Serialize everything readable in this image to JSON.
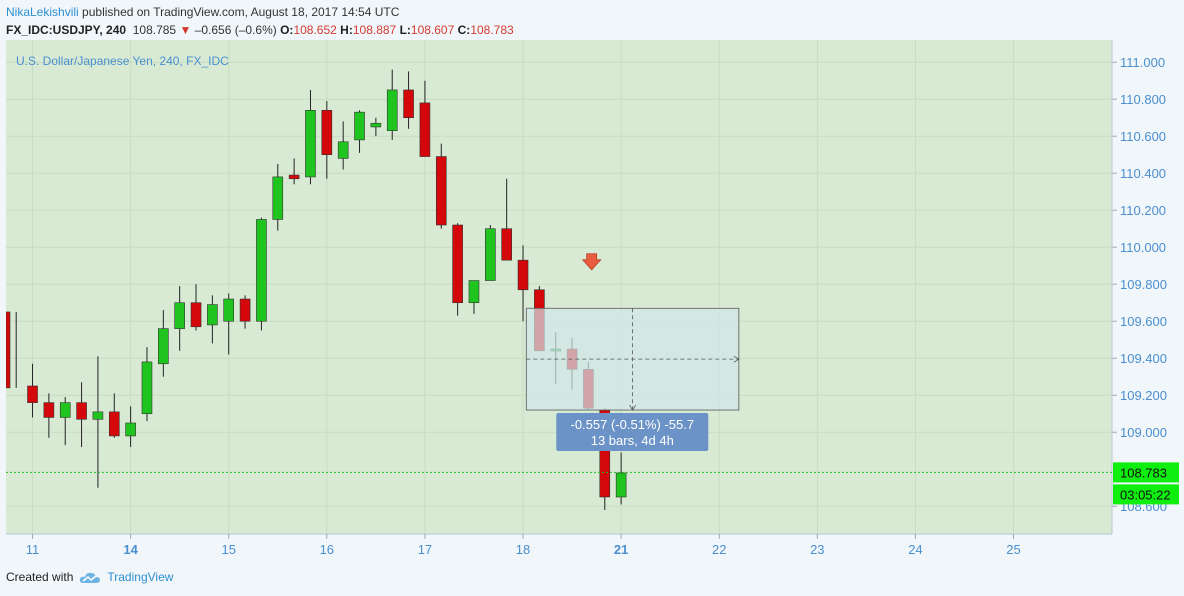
{
  "header": {
    "author": "NikaLekishvili",
    "published": "published on TradingView.com, August 18, 2017 14:54 UTC",
    "symbol": "FX_IDC:USDJPY, 240",
    "last": "108.785",
    "change": "–0.656 (–0.6%)",
    "o_label": "O:",
    "o": "108.652",
    "h_label": "H:",
    "h": "108.887",
    "l_label": "L:",
    "l": "108.607",
    "c_label": "C:",
    "c": "108.783"
  },
  "chart_data": {
    "type": "candlestick",
    "title": "U.S. Dollar/Japanese Yen, 240, FX_IDC",
    "ylim": [
      108.45,
      111.12
    ],
    "y_ticks": [
      "111.000",
      "110.800",
      "110.600",
      "110.400",
      "110.200",
      "110.000",
      "109.800",
      "109.600",
      "109.400",
      "109.200",
      "109.000",
      "108.600"
    ],
    "x_ticks": [
      {
        "label": "11",
        "x": 1.5,
        "bold": false
      },
      {
        "label": "14",
        "x": 7.5,
        "bold": true
      },
      {
        "label": "15",
        "x": 13.5,
        "bold": false
      },
      {
        "label": "16",
        "x": 19.5,
        "bold": false
      },
      {
        "label": "17",
        "x": 25.5,
        "bold": false
      },
      {
        "label": "18",
        "x": 31.5,
        "bold": false
      },
      {
        "label": "21",
        "x": 37.5,
        "bold": true
      },
      {
        "label": "22",
        "x": 43.5,
        "bold": false
      },
      {
        "label": "23",
        "x": 49.5,
        "bold": false
      },
      {
        "label": "24",
        "x": 55.5,
        "bold": false
      },
      {
        "label": "25",
        "x": 61.5,
        "bold": false
      }
    ],
    "candles": [
      {
        "o": 109.65,
        "h": 109.65,
        "l": 109.24,
        "c": 109.24
      },
      {
        "o": 109.25,
        "h": 109.37,
        "l": 109.08,
        "c": 109.16
      },
      {
        "o": 109.16,
        "h": 109.21,
        "l": 108.97,
        "c": 109.08
      },
      {
        "o": 109.08,
        "h": 109.19,
        "l": 108.93,
        "c": 109.16
      },
      {
        "o": 109.16,
        "h": 109.27,
        "l": 108.92,
        "c": 109.07
      },
      {
        "o": 109.07,
        "h": 109.41,
        "l": 108.7,
        "c": 109.11
      },
      {
        "o": 109.11,
        "h": 109.21,
        "l": 108.97,
        "c": 108.98
      },
      {
        "o": 108.98,
        "h": 109.14,
        "l": 108.92,
        "c": 109.05
      },
      {
        "o": 109.1,
        "h": 109.46,
        "l": 109.06,
        "c": 109.38
      },
      {
        "o": 109.37,
        "h": 109.66,
        "l": 109.3,
        "c": 109.56
      },
      {
        "o": 109.56,
        "h": 109.79,
        "l": 109.44,
        "c": 109.7
      },
      {
        "o": 109.7,
        "h": 109.8,
        "l": 109.55,
        "c": 109.57
      },
      {
        "o": 109.58,
        "h": 109.74,
        "l": 109.48,
        "c": 109.69
      },
      {
        "o": 109.6,
        "h": 109.75,
        "l": 109.42,
        "c": 109.72
      },
      {
        "o": 109.72,
        "h": 109.74,
        "l": 109.56,
        "c": 109.6
      },
      {
        "o": 109.6,
        "h": 110.16,
        "l": 109.55,
        "c": 110.15
      },
      {
        "o": 110.15,
        "h": 110.45,
        "l": 110.09,
        "c": 110.38
      },
      {
        "o": 110.39,
        "h": 110.48,
        "l": 110.34,
        "c": 110.37
      },
      {
        "o": 110.38,
        "h": 110.85,
        "l": 110.34,
        "c": 110.74
      },
      {
        "o": 110.74,
        "h": 110.79,
        "l": 110.37,
        "c": 110.5
      },
      {
        "o": 110.48,
        "h": 110.68,
        "l": 110.42,
        "c": 110.57
      },
      {
        "o": 110.58,
        "h": 110.74,
        "l": 110.51,
        "c": 110.73
      },
      {
        "o": 110.65,
        "h": 110.7,
        "l": 110.6,
        "c": 110.67
      },
      {
        "o": 110.63,
        "h": 110.96,
        "l": 110.58,
        "c": 110.85
      },
      {
        "o": 110.85,
        "h": 110.95,
        "l": 110.64,
        "c": 110.7
      },
      {
        "o": 110.78,
        "h": 110.9,
        "l": 110.49,
        "c": 110.49
      },
      {
        "o": 110.49,
        "h": 110.56,
        "l": 110.1,
        "c": 110.12
      },
      {
        "o": 110.12,
        "h": 110.13,
        "l": 109.63,
        "c": 109.7
      },
      {
        "o": 109.7,
        "h": 109.81,
        "l": 109.64,
        "c": 109.82
      },
      {
        "o": 109.82,
        "h": 110.12,
        "l": 109.82,
        "c": 110.1
      },
      {
        "o": 110.1,
        "h": 110.37,
        "l": 109.93,
        "c": 109.93
      },
      {
        "o": 109.93,
        "h": 110.01,
        "l": 109.6,
        "c": 109.77
      },
      {
        "o": 109.77,
        "h": 109.79,
        "l": 109.44,
        "c": 109.44
      },
      {
        "o": 109.44,
        "h": 109.54,
        "l": 109.26,
        "c": 109.45
      },
      {
        "o": 109.45,
        "h": 109.51,
        "l": 109.23,
        "c": 109.34
      },
      {
        "o": 109.34,
        "h": 109.38,
        "l": 109.12,
        "c": 109.13
      },
      {
        "o": 109.12,
        "h": 109.13,
        "l": 108.58,
        "c": 108.65
      },
      {
        "o": 108.65,
        "h": 108.89,
        "l": 108.61,
        "c": 108.78
      }
    ],
    "last_price": 108.783,
    "last_price_label": "108.783",
    "countdown_label": "03:05:22",
    "measure": {
      "x0": 31.2,
      "x1": 44.2,
      "y0": 109.12,
      "y1": 109.67,
      "start_price": 109.67,
      "end_price": 109.12,
      "line1": "-0.557 (-0.51%) -55.7",
      "line2": "13 bars, 4d 4h"
    },
    "arrow_signal": {
      "x": 35.2,
      "y": 109.9
    },
    "colors": {
      "bg": "#d9ead4",
      "up": "#20c41f",
      "down": "#d4070a",
      "measure": "#a4d3e0",
      "measure_box": "#d0e7ea",
      "label_bg": "#6c93c7",
      "price_tag": "#0fef0f",
      "axis_text": "#4a8fd0"
    }
  },
  "footer": {
    "created_with": "Created with",
    "brand": "TradingView"
  }
}
